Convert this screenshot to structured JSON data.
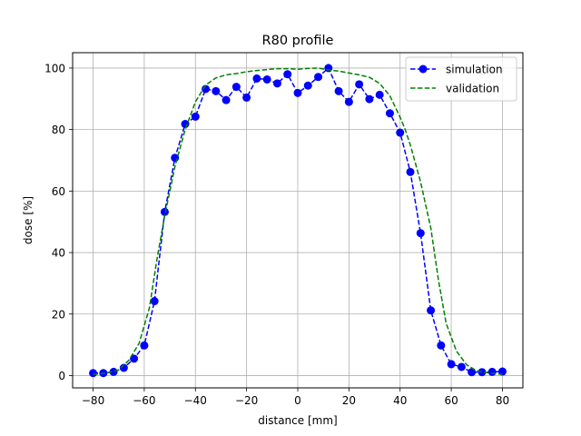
{
  "chart_data": {
    "type": "line",
    "title": "R80 profile",
    "xlabel": "distance [mm]",
    "ylabel": "dose [%]",
    "xlim": [
      -88,
      88
    ],
    "ylim": [
      -4,
      105
    ],
    "xticks": [
      -80,
      -60,
      -40,
      -20,
      0,
      20,
      40,
      60,
      80
    ],
    "yticks": [
      0,
      20,
      40,
      60,
      80,
      100
    ],
    "grid": true,
    "legend_position": "top-right",
    "series": [
      {
        "name": "simulation",
        "style": "dashed-line-with-circle-markers",
        "color": "#0000ff",
        "x": [
          -80,
          -76,
          -72,
          -68,
          -64,
          -60,
          -56,
          -52,
          -48,
          -44,
          -40,
          -36,
          -32,
          -28,
          -24,
          -20,
          -16,
          -12,
          -8,
          -4,
          0,
          4,
          8,
          12,
          16,
          20,
          24,
          28,
          32,
          36,
          40,
          44,
          48,
          52,
          56,
          60,
          64,
          68,
          72,
          76,
          80
        ],
        "y": [
          0.8,
          0.8,
          1.2,
          2.5,
          5.5,
          9.8,
          24.2,
          53.2,
          70.8,
          81.8,
          84.2,
          93.2,
          92.5,
          89.6,
          93.9,
          90.4,
          96.6,
          96.3,
          95.0,
          98.0,
          91.9,
          94.3,
          97.1,
          100.0,
          92.5,
          89.0,
          94.7,
          89.9,
          91.3,
          85.3,
          79.0,
          66.2,
          46.3,
          21.2,
          9.8,
          3.7,
          2.8,
          1.1,
          1.1,
          1.2,
          1.3
        ]
      },
      {
        "name": "validation",
        "style": "dashed-line",
        "color": "#008000",
        "x": [
          -80,
          -75,
          -70,
          -66,
          -62,
          -58,
          -55,
          -52,
          -48,
          -44,
          -40,
          -36,
          -32,
          -28,
          -24,
          -20,
          -16,
          -12,
          -8,
          -4,
          0,
          4,
          8,
          12,
          16,
          20,
          24,
          28,
          32,
          36,
          40,
          42,
          44,
          48,
          52,
          55,
          58,
          62,
          66,
          70,
          75,
          80
        ],
        "y": [
          0.4,
          0.8,
          1.8,
          5.0,
          10.5,
          22.0,
          38.0,
          52.0,
          68.0,
          80.0,
          89.0,
          94.5,
          96.8,
          97.8,
          98.2,
          98.8,
          99.2,
          99.5,
          99.8,
          99.8,
          99.6,
          99.9,
          100.0,
          99.4,
          99.0,
          98.4,
          97.8,
          97.0,
          95.0,
          91.0,
          84.0,
          80.0,
          75.0,
          63.0,
          48.0,
          31.0,
          17.0,
          8.0,
          3.5,
          1.5,
          0.8,
          0.4
        ]
      }
    ]
  }
}
